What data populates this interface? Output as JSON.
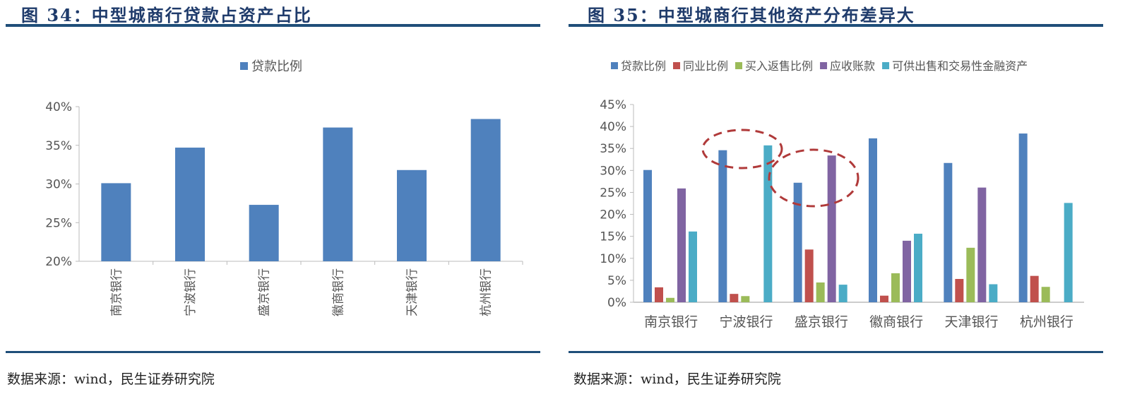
{
  "left": {
    "title": "图 34：中型城商行贷款占资产占比",
    "source": "数据来源：wind，民生证券研究院"
  },
  "right": {
    "title": "图 35：中型城商行其他资产分布差异大",
    "source": "数据来源：wind，民生证券研究院"
  },
  "chart_data": [
    {
      "type": "bar",
      "title": "",
      "categories": [
        "南京银行",
        "宁波银行",
        "盛京银行",
        "徽商银行",
        "天津银行",
        "杭州银行"
      ],
      "series": [
        {
          "name": "贷款比例",
          "color": "#4f81bd",
          "values": [
            30.1,
            34.7,
            27.3,
            37.3,
            31.8,
            38.4
          ]
        }
      ],
      "ylim": [
        20,
        40
      ],
      "yticks": [
        "20%",
        "25%",
        "30%",
        "35%",
        "40%"
      ],
      "legend": "top-center",
      "grid": false
    },
    {
      "type": "bar",
      "title": "",
      "categories": [
        "南京银行",
        "宁波银行",
        "盛京银行",
        "徽商银行",
        "天津银行",
        "杭州银行"
      ],
      "series": [
        {
          "name": "贷款比例",
          "color": "#4f81bd",
          "values": [
            30.1,
            34.6,
            27.2,
            37.3,
            31.7,
            38.4
          ]
        },
        {
          "name": "同业比例",
          "color": "#c0504d",
          "values": [
            3.4,
            1.9,
            12.0,
            1.5,
            5.3,
            6.0
          ]
        },
        {
          "name": "买入返售比例",
          "color": "#9bbb59",
          "values": [
            1.0,
            1.4,
            4.5,
            6.6,
            12.4,
            3.5
          ]
        },
        {
          "name": "应收账款",
          "color": "#8064a2",
          "values": [
            25.9,
            0,
            33.4,
            14.0,
            26.1,
            0
          ]
        },
        {
          "name": "可供出售和交易性金融资产",
          "color": "#4bacc6",
          "values": [
            16.1,
            35.7,
            4.0,
            15.6,
            4.1,
            22.6
          ]
        }
      ],
      "ylim": [
        0,
        45
      ],
      "yticks": [
        "0%",
        "5%",
        "10%",
        "15%",
        "20%",
        "25%",
        "30%",
        "35%",
        "40%",
        "45%"
      ],
      "legend": "top",
      "grid": false,
      "annotations": [
        "dashed ellipse around 宁波银行 贷款比例 and 可供出售",
        "dashed ellipse around 盛京银行 贷款比例 and 应收账款"
      ]
    }
  ]
}
